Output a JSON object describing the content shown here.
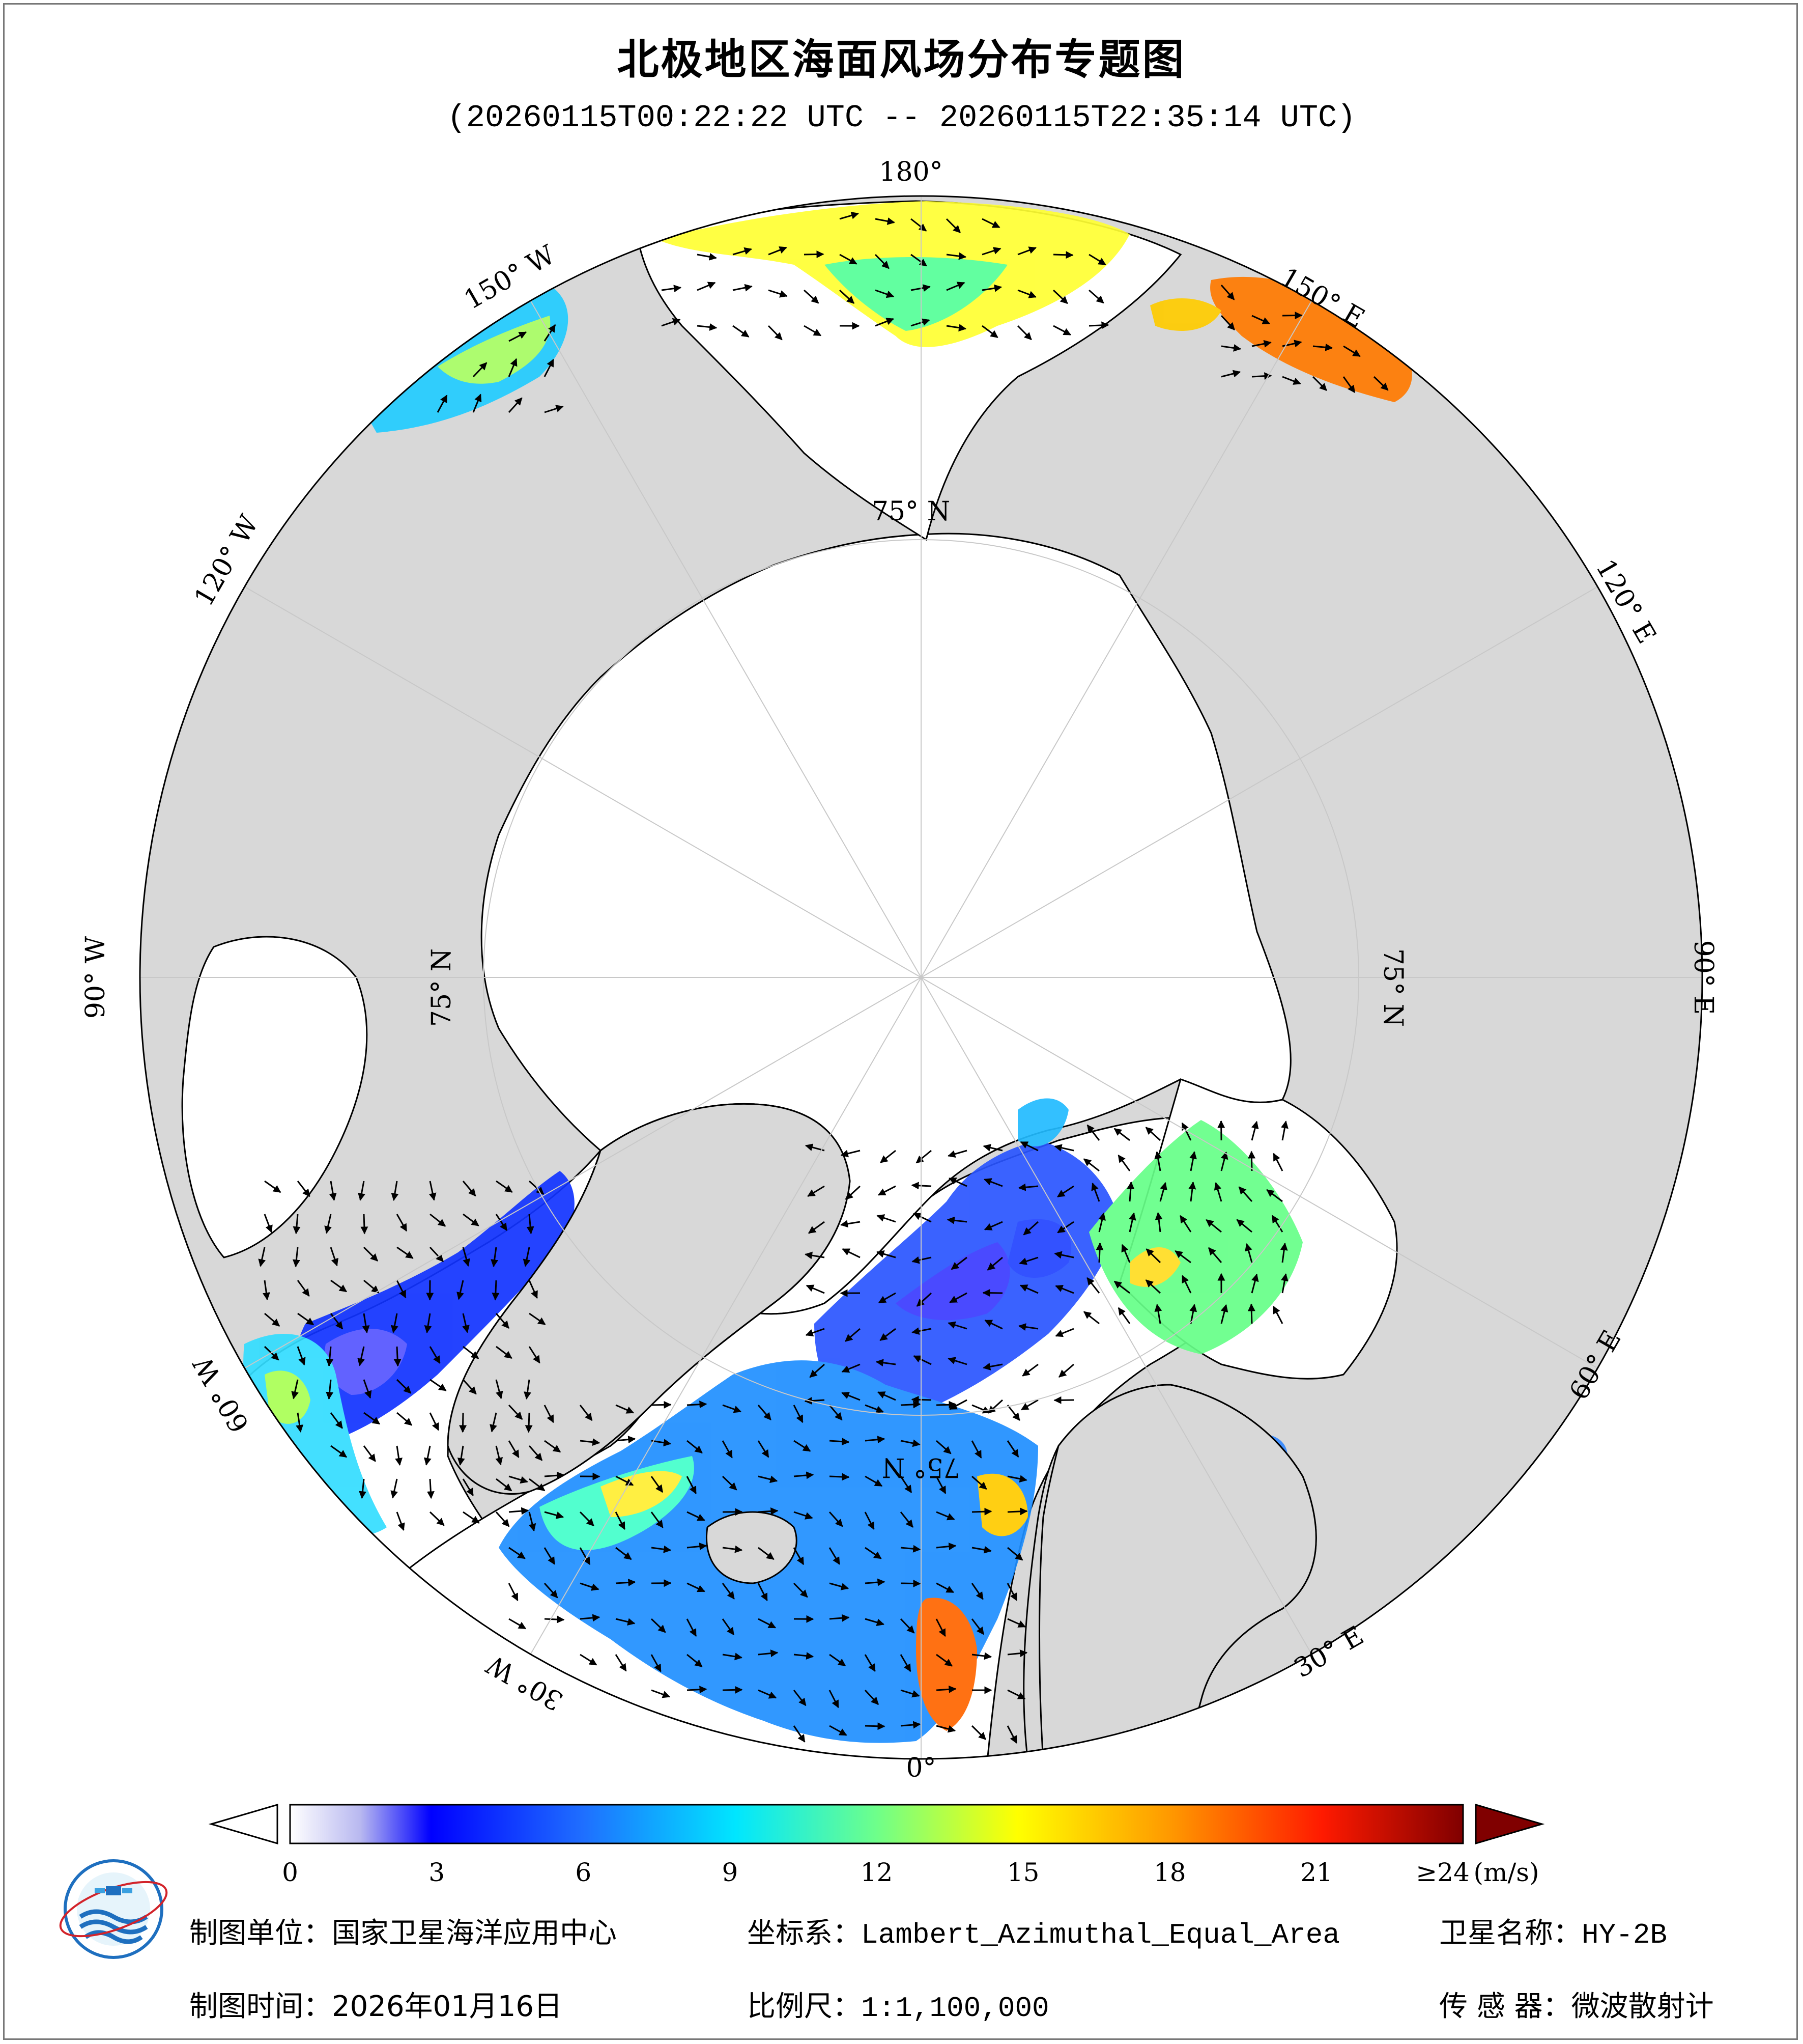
{
  "title": "北极地区海面风场分布专题图",
  "subtitle": "(20260115T00:22:22 UTC -- 20260115T22:35:14 UTC)",
  "graticule": {
    "meridians": [
      "180°",
      "150° E",
      "120° E",
      "90° E",
      "60° E",
      "30° E",
      "0°",
      "30° W",
      "60° W",
      "90° W",
      "120° W",
      "150° W"
    ],
    "parallel_label": "75° N"
  },
  "colorbar": {
    "ticks": [
      "0",
      "3",
      "6",
      "9",
      "12",
      "15",
      "18",
      "21"
    ],
    "max_label": "≥24",
    "unit": "(m/s)",
    "min": 0,
    "max": 24
  },
  "footer": {
    "unit_label": "制图单位：",
    "unit_value": "国家卫星海洋应用中心",
    "crs_label": "坐标系：",
    "crs_value": "Lambert_Azimuthal_Equal_Area",
    "satellite_label": "卫星名称：",
    "satellite_value": "HY-2B",
    "date_label": "制图时间：",
    "date_value": "2026年01月16日",
    "scale_label": "比例尺：",
    "scale_value": "1:1,100,000",
    "sensor_label": "传 感 器：",
    "sensor_value": "微波散射计"
  },
  "colors": {
    "land": "#d8d8d8",
    "ocean": "#ffffff",
    "coastline": "#000000",
    "graticule": "#c8c8c8"
  }
}
